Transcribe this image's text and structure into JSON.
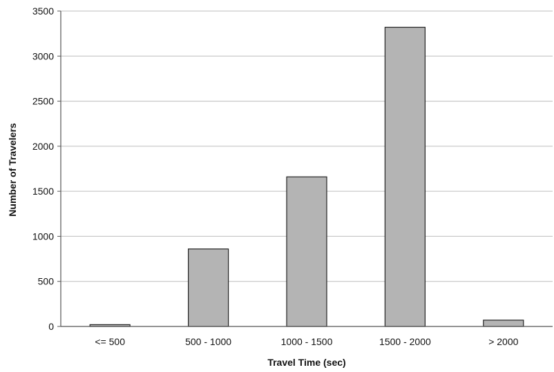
{
  "chart_data": {
    "type": "bar",
    "title": "",
    "xlabel": "Travel Time (sec)",
    "ylabel": "Number of Travelers",
    "categories": [
      "<= 500",
      "500 - 1000",
      "1000 - 1500",
      "1500 - 2000",
      "> 2000"
    ],
    "values": [
      20,
      860,
      1660,
      3320,
      70
    ],
    "ylim": [
      0,
      3500
    ],
    "yticks": [
      0,
      500,
      1000,
      1500,
      2000,
      2500,
      3000,
      3500
    ],
    "ytick_labels": [
      "0",
      "500",
      "1000",
      "1500",
      "2000",
      "2500",
      "3000",
      "3500"
    ],
    "grid": "horizontal",
    "legend": "none",
    "colors": {
      "bar_fill": "#b4b4b4",
      "bar_stroke": "#222222",
      "grid": "#bdbdbd",
      "axis": "#555555"
    }
  }
}
